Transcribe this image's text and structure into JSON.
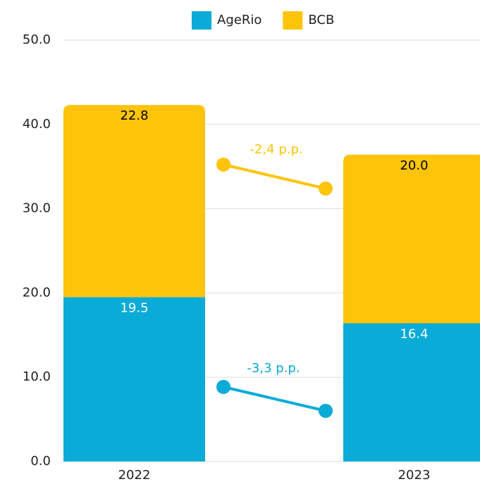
{
  "chart_data": {
    "type": "stacked_bar",
    "categories": [
      "2022",
      "2023"
    ],
    "series": [
      {
        "name": "AgeRio",
        "color": "#0aabd6",
        "values": [
          19.5,
          16.4
        ],
        "value_labels": [
          "19.5",
          "16.4"
        ],
        "label_color": "#ffffff"
      },
      {
        "name": "BCB",
        "color": "#fec40a",
        "values": [
          22.8,
          20.0
        ],
        "value_labels": [
          "22.8",
          "20.0"
        ],
        "label_color": "#000000"
      }
    ],
    "ylim": [
      0,
      50
    ],
    "yticks": [
      {
        "value": 0,
        "label": "0.0"
      },
      {
        "value": 10,
        "label": "10.0"
      },
      {
        "value": 20,
        "label": "20.0"
      },
      {
        "value": 30,
        "label": "30.0"
      },
      {
        "value": 40,
        "label": "40.0"
      },
      {
        "value": 50,
        "label": "50.0"
      }
    ],
    "grid": true,
    "legend": "top",
    "annotations": [
      "-2,4 p.p.",
      "-3,3 p.p."
    ]
  }
}
